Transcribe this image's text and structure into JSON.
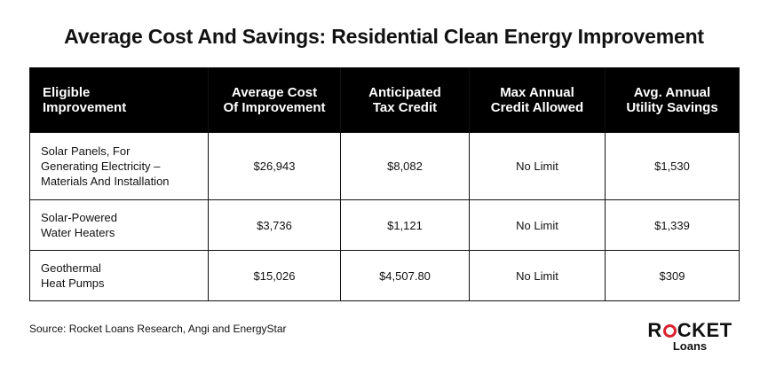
{
  "title": "Average Cost And Savings: Residential Clean Energy Improvement",
  "table": {
    "headers": [
      [
        "Eligible",
        "Improvement"
      ],
      [
        "Average Cost",
        "Of Improvement"
      ],
      [
        "Anticipated",
        "Tax Credit"
      ],
      [
        "Max Annual",
        "Credit Allowed"
      ],
      [
        "Avg. Annual",
        "Utility Savings"
      ]
    ],
    "rows": [
      {
        "improvement": [
          "Solar Panels, For",
          "Generating Electricity –",
          "Materials And Installation"
        ],
        "avg_cost": "$26,943",
        "tax_credit": "$8,082",
        "max_credit": "No Limit",
        "savings": "$1,530"
      },
      {
        "improvement": [
          "Solar-Powered",
          "Water Heaters"
        ],
        "avg_cost": "$3,736",
        "tax_credit": "$1,121",
        "max_credit": "No Limit",
        "savings": "$1,339"
      },
      {
        "improvement": [
          "Geothermal",
          "Heat Pumps"
        ],
        "avg_cost": "$15,026",
        "tax_credit": "$4,507.80",
        "max_credit": "No Limit",
        "savings": "$309"
      }
    ]
  },
  "source": "Source: Rocket Loans Research, Angi and EnergyStar",
  "logo": {
    "word_start": "R",
    "word_end": "CKET",
    "sub": "Loans",
    "accent_color": "#d9232e"
  }
}
